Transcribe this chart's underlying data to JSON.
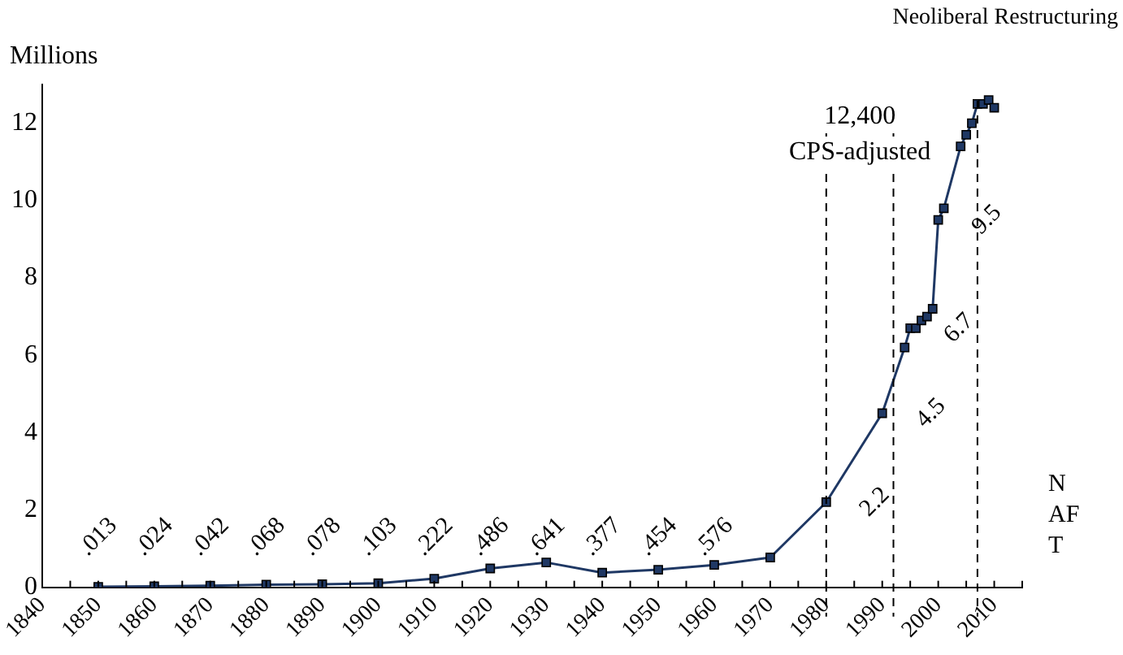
{
  "chart_data": {
    "type": "line",
    "ylabel": "Millions",
    "annotations": [
      "Neoliberal Restructuring",
      "12,400\nCPS-adjusted",
      "N\nAF\nT"
    ],
    "x": [
      1850,
      1860,
      1870,
      1880,
      1890,
      1900,
      1910,
      1920,
      1930,
      1940,
      1950,
      1960,
      1970,
      1980,
      1990,
      1994,
      1995,
      1996,
      1997,
      1998,
      1999,
      2000,
      2001,
      2004,
      2005,
      2006,
      2007,
      2008,
      2009,
      2010
    ],
    "series": [
      {
        "color": "#1f3864",
        "values": [
          0.013,
          0.024,
          0.042,
          0.068,
          0.078,
          0.103,
          0.222,
          0.486,
          0.641,
          0.377,
          0.454,
          0.576,
          0.77,
          2.2,
          4.5,
          6.2,
          6.7,
          6.7,
          6.9,
          7.0,
          7.2,
          9.5,
          9.8,
          11.4,
          11.7,
          12.0,
          12.5,
          12.5,
          12.6,
          12.4
        ],
        "value_labels": [
          ".013",
          ".024",
          ".042",
          ".068",
          ".078",
          ".103",
          ".222",
          ".486",
          ".641",
          ".377",
          ".454",
          ".576",
          null,
          "2.2",
          "4.5",
          null,
          "6.7",
          null,
          null,
          null,
          null,
          "9.5",
          null,
          null,
          null,
          null,
          null,
          null,
          null,
          null
        ]
      }
    ],
    "xlim": [
      1840,
      2015
    ],
    "xticks": [
      1840,
      {
        "value": 1845,
        "label": null
      },
      1850,
      {
        "value": 1855,
        "label": null
      },
      1860,
      {
        "value": 1865,
        "label": null
      },
      1870,
      {
        "value": 1875,
        "label": null
      },
      1880,
      {
        "value": 1885,
        "label": null
      },
      1890,
      {
        "value": 1895,
        "label": null
      },
      1900,
      {
        "value": 1905,
        "label": null
      },
      1910,
      {
        "value": 1915,
        "label": null
      },
      1920,
      {
        "value": 1925,
        "label": null
      },
      1930,
      {
        "value": 1935,
        "label": null
      },
      1940,
      {
        "value": 1945,
        "label": null
      },
      1950,
      {
        "value": 1955,
        "label": null
      },
      1960,
      {
        "value": 1965,
        "label": null
      },
      1970,
      {
        "value": 1975,
        "label": null
      },
      1980,
      {
        "value": 1985,
        "label": null
      },
      1990,
      {
        "value": 1995,
        "label": null
      },
      2000,
      {
        "value": 2005,
        "label": null
      },
      2010,
      {
        "value": 2015,
        "label": null
      }
    ],
    "ylim": [
      0,
      13
    ],
    "yticks": [
      0,
      2,
      4,
      6,
      8,
      10,
      12
    ],
    "ref_lines": [
      {
        "axis": "x",
        "value": 1980,
        "line_style": "dashed"
      },
      {
        "axis": "x",
        "value": 1992,
        "line_style": "dashed"
      },
      {
        "axis": "x",
        "value": 2007,
        "line_style": "dashed"
      }
    ],
    "grid": false,
    "legend": false,
    "marker": "square",
    "line_style": "solid"
  }
}
